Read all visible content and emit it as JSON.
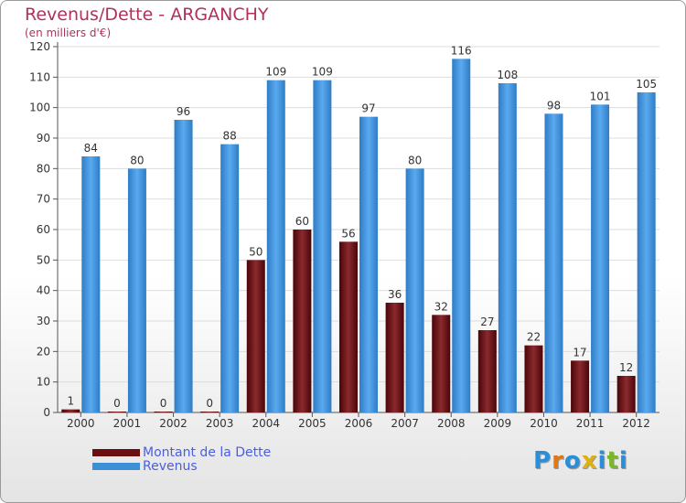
{
  "chart_data": {
    "type": "bar",
    "title": "Revenus/Dette - ARGANCHY",
    "subtitle": "(en milliers d'€)",
    "categories": [
      "2000",
      "2001",
      "2002",
      "2003",
      "2004",
      "2005",
      "2006",
      "2007",
      "2008",
      "2009",
      "2010",
      "2011",
      "2012"
    ],
    "series": [
      {
        "name": "Montant de la Dette",
        "color": "#6b0e12",
        "values": [
          1,
          0,
          0,
          0,
          50,
          60,
          56,
          36,
          32,
          27,
          22,
          17,
          12
        ]
      },
      {
        "name": "Revenus",
        "color": "#3d8fd6",
        "values": [
          84,
          80,
          96,
          88,
          109,
          109,
          97,
          80,
          116,
          108,
          98,
          101,
          105
        ]
      }
    ],
    "ylim": [
      0,
      120
    ],
    "yticks": [
      0,
      10,
      20,
      30,
      40,
      50,
      60,
      70,
      80,
      90,
      100,
      110,
      120
    ],
    "grid": true,
    "legend": "bottom-left"
  },
  "logo": {
    "letters": [
      "P",
      "r",
      "o",
      "x",
      "i",
      "t",
      "i"
    ],
    "colors": [
      "#2a8fd8",
      "#e07a10",
      "#2a8fd8",
      "#e0b010",
      "#2a8fd8",
      "#7ab82a",
      "#2a8fd8"
    ]
  }
}
